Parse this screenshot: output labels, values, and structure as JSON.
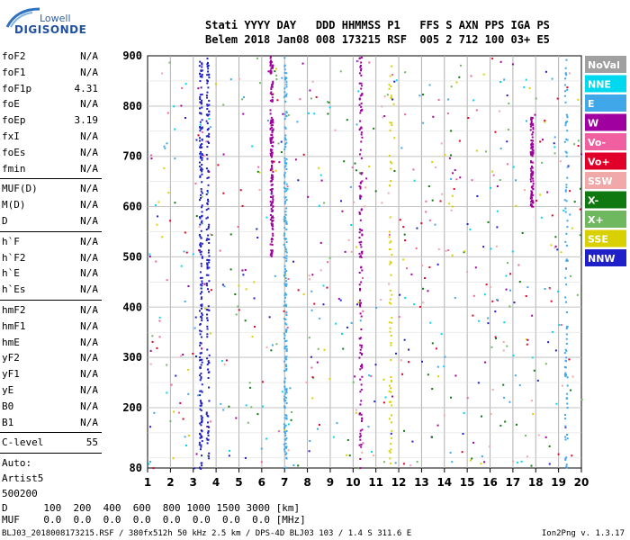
{
  "logo": {
    "line1": "Lowell",
    "line2": "DIGISONDE"
  },
  "header": {
    "labels": "Stati YYYY DAY   DDD HHMMSS P1   FFS S AXN PPS IGA PS",
    "values": "Belem 2018 Jan08 008 173215 RSF  005 2 712 100 03+ E5"
  },
  "params": [
    {
      "name": "foF2",
      "value": "N/A"
    },
    {
      "name": "foF1",
      "value": "N/A"
    },
    {
      "name": "foF1p",
      "value": "4.31"
    },
    {
      "name": "foE",
      "value": "N/A"
    },
    {
      "name": "foEp",
      "value": "3.19"
    },
    {
      "name": "fxI",
      "value": "N/A"
    },
    {
      "name": "foEs",
      "value": "N/A"
    },
    {
      "name": "fmin",
      "value": "N/A"
    },
    {
      "name": "MUF(D)",
      "value": "N/A"
    },
    {
      "name": "M(D)",
      "value": "N/A"
    },
    {
      "name": "D",
      "value": "N/A"
    },
    {
      "name": "h`F",
      "value": "N/A"
    },
    {
      "name": "h`F2",
      "value": "N/A"
    },
    {
      "name": "h`E",
      "value": "N/A"
    },
    {
      "name": "h`Es",
      "value": "N/A"
    },
    {
      "name": "hmF2",
      "value": "N/A"
    },
    {
      "name": "hmF1",
      "value": "N/A"
    },
    {
      "name": "hmE",
      "value": "N/A"
    },
    {
      "name": "yF2",
      "value": "N/A"
    },
    {
      "name": "yF1",
      "value": "N/A"
    },
    {
      "name": "yE",
      "value": "N/A"
    },
    {
      "name": "B0",
      "value": "N/A"
    },
    {
      "name": "B1",
      "value": "N/A"
    },
    {
      "name": "C-level",
      "value": "55"
    }
  ],
  "auto": {
    "line1": "Auto:",
    "line2": "Artist5",
    "line3": "500200"
  },
  "bottom": {
    "d_row": "D      100  200  400  600  800 1000 1500 3000 [km]",
    "muf_row": "MUF    0.0  0.0  0.0  0.0  0.0  0.0  0.0  0.0 [MHz]"
  },
  "footer": "BLJ03_2018008173215.RSF / 380fx512h 50 kHz 2.5 km / DPS-4D BLJ03 103 / 1.4 S 311.6 E",
  "version": "Ion2Png v. 1.3.17",
  "chart_data": {
    "type": "scatter",
    "xlim": [
      1,
      20
    ],
    "ylim": [
      80,
      900
    ],
    "xticks": [
      "1",
      "2",
      "3",
      "4",
      "5",
      "6",
      "7",
      "8",
      "9",
      "10",
      "11",
      "12",
      "13",
      "14",
      "15",
      "16",
      "17",
      "18",
      "19",
      "20"
    ],
    "yticks": [
      "80",
      "200",
      "300",
      "400",
      "500",
      "600",
      "700",
      "800",
      "900"
    ],
    "legend": [
      {
        "label": "NoVal",
        "color": "#a0a0a0"
      },
      {
        "label": "NNE",
        "color": "#00d8f0"
      },
      {
        "label": "E",
        "color": "#40a8e8"
      },
      {
        "label": "W",
        "color": "#a000a0"
      },
      {
        "label": "Vo-",
        "color": "#f060a0"
      },
      {
        "label": "Vo+",
        "color": "#e0002a"
      },
      {
        "label": "SSW",
        "color": "#f0a8a8"
      },
      {
        "label": "X-",
        "color": "#107810"
      },
      {
        "label": "X+",
        "color": "#70b860"
      },
      {
        "label": "SSE",
        "color": "#d8d000"
      },
      {
        "label": "NNW",
        "color": "#2020c8"
      }
    ],
    "bands": [
      {
        "x": 3.3,
        "y0": 80,
        "y1": 900,
        "color": "#2020c8",
        "density": 0.9
      },
      {
        "x": 3.6,
        "y0": 80,
        "y1": 900,
        "color": "#2020c8",
        "density": 0.6
      },
      {
        "x": 6.4,
        "y0": 500,
        "y1": 900,
        "color": "#a000a0",
        "density": 0.8
      },
      {
        "x": 7.0,
        "y0": 80,
        "y1": 900,
        "color": "#40a8e8",
        "density": 0.9
      },
      {
        "x": 10.3,
        "y0": 80,
        "y1": 900,
        "color": "#a000a0",
        "density": 0.6
      },
      {
        "x": 11.6,
        "y0": 80,
        "y1": 900,
        "color": "#d8d000",
        "density": 0.3
      },
      {
        "x": 17.8,
        "y0": 600,
        "y1": 780,
        "color": "#a000a0",
        "density": 0.5
      },
      {
        "x": 19.3,
        "y0": 80,
        "y1": 900,
        "color": "#40a8e8",
        "density": 0.4
      }
    ]
  }
}
